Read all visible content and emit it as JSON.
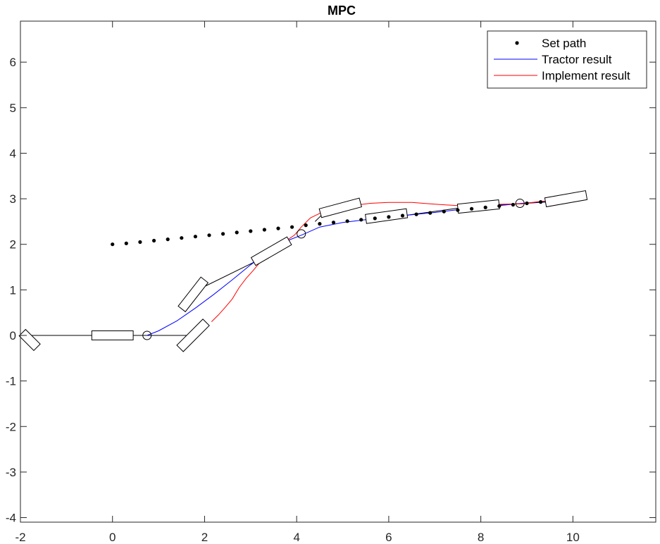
{
  "chart_data": {
    "type": "line",
    "title": "MPC",
    "xlabel": "",
    "ylabel": "",
    "xlim": [
      -2,
      11.8
    ],
    "ylim": [
      -4.1,
      6.9
    ],
    "xticks": [
      "-2",
      "0",
      "2",
      "4",
      "6",
      "8",
      "10"
    ],
    "yticks": [
      "-4",
      "-3",
      "-2",
      "-1",
      "0",
      "1",
      "2",
      "3",
      "4",
      "5",
      "6"
    ],
    "grid": false,
    "legend_position": "top-right",
    "series": [
      {
        "name": "Set path",
        "style": "dots",
        "color": "#000000",
        "points": [
          [
            0,
            2.0
          ],
          [
            0.3,
            2.02
          ],
          [
            0.6,
            2.05
          ],
          [
            0.9,
            2.08
          ],
          [
            1.2,
            2.11
          ],
          [
            1.5,
            2.14
          ],
          [
            1.8,
            2.17
          ],
          [
            2.1,
            2.2
          ],
          [
            2.4,
            2.23
          ],
          [
            2.7,
            2.26
          ],
          [
            3.0,
            2.29
          ],
          [
            3.3,
            2.32
          ],
          [
            3.6,
            2.35
          ],
          [
            3.9,
            2.38
          ],
          [
            4.2,
            2.42
          ],
          [
            4.5,
            2.45
          ],
          [
            4.8,
            2.48
          ],
          [
            5.1,
            2.51
          ],
          [
            5.4,
            2.54
          ],
          [
            5.7,
            2.57
          ],
          [
            6.0,
            2.6
          ],
          [
            6.3,
            2.63
          ],
          [
            6.6,
            2.66
          ],
          [
            6.9,
            2.69
          ],
          [
            7.2,
            2.72
          ],
          [
            7.5,
            2.75
          ],
          [
            7.8,
            2.78
          ],
          [
            8.1,
            2.81
          ],
          [
            8.4,
            2.84
          ],
          [
            8.7,
            2.87
          ],
          [
            9.0,
            2.9
          ],
          [
            9.3,
            2.93
          ]
        ]
      },
      {
        "name": "Tractor result",
        "style": "line",
        "color": "#0000ff",
        "points": [
          [
            0.75,
            0.0
          ],
          [
            1.0,
            0.1
          ],
          [
            1.4,
            0.32
          ],
          [
            1.8,
            0.6
          ],
          [
            2.2,
            0.9
          ],
          [
            2.6,
            1.22
          ],
          [
            3.0,
            1.55
          ],
          [
            3.4,
            1.85
          ],
          [
            3.8,
            2.08
          ],
          [
            4.1,
            2.2
          ],
          [
            4.5,
            2.38
          ],
          [
            5.0,
            2.48
          ],
          [
            5.5,
            2.54
          ],
          [
            6.0,
            2.6
          ],
          [
            6.5,
            2.65
          ],
          [
            7.0,
            2.7
          ],
          [
            7.5,
            2.76
          ],
          [
            8.0,
            2.81
          ],
          [
            8.5,
            2.86
          ],
          [
            8.9,
            2.9
          ],
          [
            9.4,
            2.94
          ]
        ]
      },
      {
        "name": "Implement result",
        "style": "line",
        "color": "#ff0000",
        "points": [
          [
            2.15,
            0.3
          ],
          [
            2.3,
            0.45
          ],
          [
            2.45,
            0.62
          ],
          [
            2.6,
            0.8
          ],
          [
            2.75,
            1.05
          ],
          [
            2.9,
            1.25
          ],
          [
            3.05,
            1.42
          ],
          [
            3.2,
            1.6
          ],
          [
            3.4,
            1.8
          ],
          [
            3.6,
            1.95
          ],
          [
            3.8,
            2.1
          ],
          [
            3.95,
            2.2
          ],
          [
            4.1,
            2.38
          ],
          [
            4.3,
            2.58
          ],
          [
            4.5,
            2.68
          ],
          [
            4.8,
            2.76
          ],
          [
            5.2,
            2.85
          ],
          [
            5.6,
            2.9
          ],
          [
            6.0,
            2.92
          ],
          [
            6.5,
            2.92
          ],
          [
            7.0,
            2.88
          ],
          [
            7.5,
            2.85
          ],
          [
            8.0,
            2.86
          ],
          [
            8.5,
            2.88
          ],
          [
            8.9,
            2.89
          ],
          [
            9.2,
            2.93
          ],
          [
            9.5,
            2.96
          ]
        ]
      }
    ],
    "vehicle_bodies": [
      {
        "cx": 0.0,
        "cy": 0.0,
        "len": 0.9,
        "wid": 0.2,
        "angle": 0
      },
      {
        "cx": 1.75,
        "cy": 0.9,
        "len": 0.8,
        "wid": 0.2,
        "angle": 52
      },
      {
        "cx": 1.75,
        "cy": 0.0,
        "len": 0.8,
        "wid": 0.2,
        "angle": 45
      },
      {
        "cx": 3.45,
        "cy": 1.85,
        "len": 0.9,
        "wid": 0.2,
        "angle": 30
      },
      {
        "cx": 4.95,
        "cy": 2.8,
        "len": 0.9,
        "wid": 0.2,
        "angle": 15
      },
      {
        "cx": 5.95,
        "cy": 2.62,
        "len": 0.9,
        "wid": 0.2,
        "angle": 8
      },
      {
        "cx": 7.95,
        "cy": 2.83,
        "len": 0.9,
        "wid": 0.2,
        "angle": 6
      },
      {
        "cx": 9.85,
        "cy": 3.0,
        "len": 0.9,
        "wid": 0.2,
        "angle": 10
      },
      {
        "cx": -1.8,
        "cy": -0.1,
        "len": 0.45,
        "wid": 0.2,
        "angle": -45
      }
    ],
    "hitch_links": [
      [
        [
          -2.0,
          0.0
        ],
        [
          1.65,
          0.0
        ]
      ],
      [
        [
          1.95,
          1.05
        ],
        [
          3.3,
          1.72
        ]
      ],
      [
        [
          4.4,
          2.5
        ],
        [
          4.55,
          2.65
        ]
      ],
      [
        [
          6.4,
          2.64
        ],
        [
          7.55,
          2.8
        ]
      ],
      [
        [
          8.3,
          2.86
        ],
        [
          9.45,
          2.93
        ]
      ]
    ],
    "wheel_circles": [
      [
        0.75,
        0.0
      ],
      [
        4.1,
        2.23
      ],
      [
        8.85,
        2.9
      ]
    ]
  }
}
